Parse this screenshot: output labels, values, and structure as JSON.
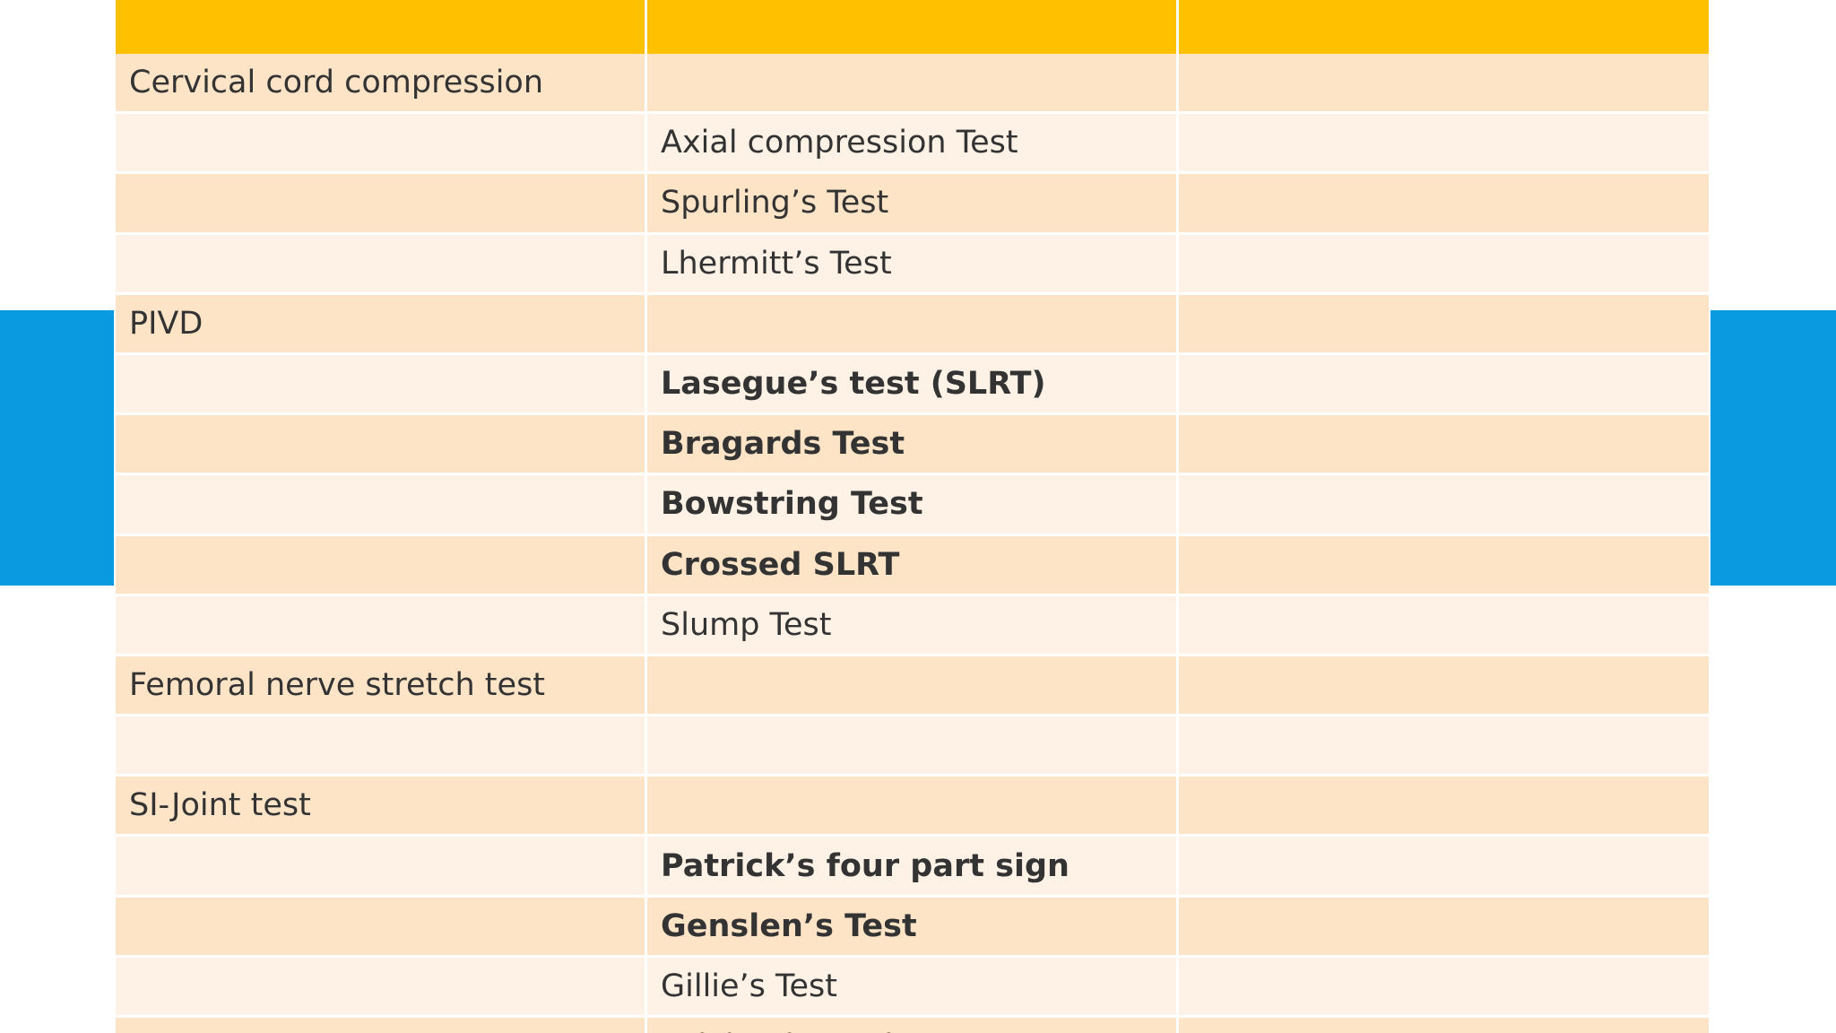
{
  "colors": {
    "accent_blue": "#0a9ae0",
    "header_gold": "#ffc000",
    "row_dark": "#fde4c7",
    "row_light": "#fef2e6",
    "text": "#333333"
  },
  "table": {
    "header": [
      "",
      "",
      ""
    ],
    "rows": [
      {
        "col1": "Cervical cord compression",
        "col2": "",
        "col3": "",
        "bold": false
      },
      {
        "col1": "",
        "col2": "Axial compression Test",
        "col3": "",
        "bold": false
      },
      {
        "col1": "",
        "col2": "Spurling’s Test",
        "col3": "",
        "bold": false
      },
      {
        "col1": "",
        "col2": "Lhermitt’s Test",
        "col3": "",
        "bold": false
      },
      {
        "col1": "PIVD",
        "col2": "",
        "col3": "",
        "bold": false
      },
      {
        "col1": "",
        "col2": "Lasegue’s test (SLRT)",
        "col3": "",
        "bold": true
      },
      {
        "col1": "",
        "col2": "Bragards Test",
        "col3": "",
        "bold": true
      },
      {
        "col1": "",
        "col2": "Bowstring Test",
        "col3": "",
        "bold": true
      },
      {
        "col1": "",
        "col2": "Crossed SLRT",
        "col3": "",
        "bold": true
      },
      {
        "col1": "",
        "col2": "Slump Test",
        "col3": "",
        "bold": false
      },
      {
        "col1": "Femoral nerve stretch test",
        "col2": "",
        "col3": "",
        "bold": false
      },
      {
        "col1": "",
        "col2": "",
        "col3": "",
        "bold": false
      },
      {
        "col1": "SI-Joint test",
        "col2": "",
        "col3": "",
        "bold": false
      },
      {
        "col1": "",
        "col2": "Patrick’s four part sign",
        "col3": "",
        "bold": true
      },
      {
        "col1": "",
        "col2": "Genslen’s Test",
        "col3": "",
        "bold": true
      },
      {
        "col1": "",
        "col2": "Gillie’s Test",
        "col3": "",
        "bold": false
      },
      {
        "col1": "",
        "col2": "Pelvic Distraction Test",
        "col3": "",
        "bold": false
      }
    ]
  }
}
